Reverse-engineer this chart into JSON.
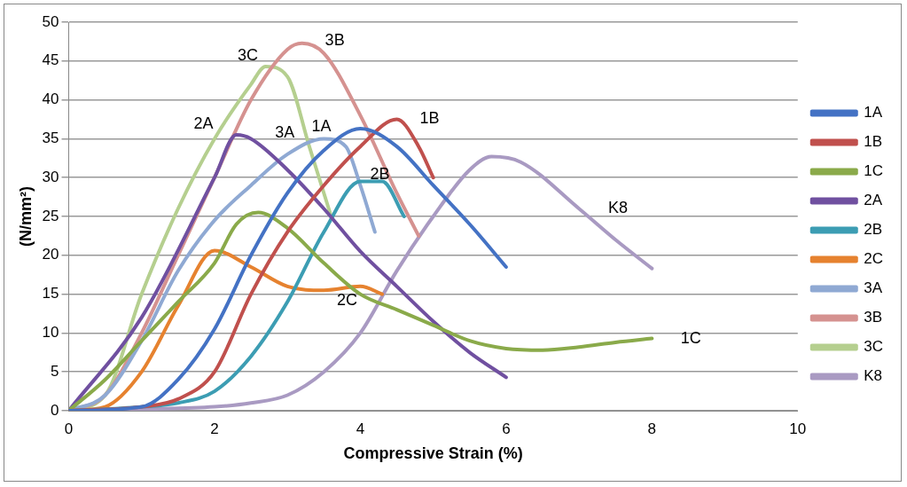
{
  "chart_data": {
    "type": "line",
    "xlabel": "Compressive Strain (%)",
    "ylabel": "(N/mm²)",
    "xlim": [
      0,
      10
    ],
    "xticks": [
      0,
      2,
      4,
      6,
      8,
      10
    ],
    "ylim": [
      0,
      50
    ],
    "yticks": [
      0,
      5,
      10,
      15,
      20,
      25,
      30,
      35,
      40,
      45,
      50
    ],
    "grid": "y",
    "legend": "right",
    "marker": "none",
    "line_style": "solid",
    "series": [
      {
        "name": "1A",
        "color": "#4472c4",
        "x": [
          0,
          1,
          1.5,
          2,
          2.5,
          3,
          3.5,
          4,
          4.5,
          5,
          5.5,
          6
        ],
        "values": [
          0,
          0.5,
          4,
          10.5,
          20,
          28,
          33.5,
          36.3,
          34,
          29,
          24,
          18.5
        ]
      },
      {
        "name": "1B",
        "color": "#c0504d",
        "x": [
          0,
          1,
          1.5,
          2,
          2.5,
          3,
          3.5,
          4,
          4.5,
          4.8,
          5
        ],
        "values": [
          0,
          0.5,
          1.5,
          5,
          15,
          23,
          29,
          34,
          37.5,
          34,
          30
        ]
      },
      {
        "name": "1C",
        "color": "#8aaa4a",
        "x": [
          0,
          0.5,
          1,
          1.5,
          2,
          2.3,
          2.6,
          3,
          3.5,
          4,
          4.5,
          5,
          5.5,
          6,
          6.5,
          7,
          7.5,
          8
        ],
        "values": [
          0,
          4,
          9,
          14,
          19,
          24,
          25.5,
          23.5,
          19,
          15,
          13,
          11,
          9,
          8,
          7.8,
          8.2,
          8.8,
          9.3
        ]
      },
      {
        "name": "2A",
        "color": "#7050a0",
        "x": [
          0,
          1,
          2,
          2.3,
          2.5,
          3,
          3.5,
          4,
          4.5,
          5,
          5.5,
          6
        ],
        "values": [
          0,
          12,
          30,
          35.5,
          35,
          31,
          26,
          20.5,
          16,
          11.5,
          7.5,
          4.3
        ]
      },
      {
        "name": "2B",
        "color": "#3c9db3",
        "x": [
          0,
          1,
          1.5,
          2,
          2.5,
          3,
          3.5,
          4,
          4.3,
          4.6
        ],
        "values": [
          0,
          0.5,
          1,
          2.5,
          7,
          14,
          23,
          29.5,
          29.5,
          25
        ]
      },
      {
        "name": "2C",
        "color": "#e6822f",
        "x": [
          0,
          0.5,
          1,
          1.5,
          2,
          2.5,
          3,
          3.5,
          4,
          4.3
        ],
        "values": [
          0,
          0.5,
          5,
          13.5,
          20.6,
          18.5,
          16,
          15.5,
          16,
          15
        ]
      },
      {
        "name": "3A",
        "color": "#8fa9d3",
        "x": [
          0,
          0.5,
          1,
          1.5,
          2,
          2.5,
          3,
          3.5,
          3.8,
          4,
          4.2
        ],
        "values": [
          0,
          2,
          9,
          18,
          24.5,
          29,
          33,
          35,
          34,
          29,
          23
        ]
      },
      {
        "name": "3B",
        "color": "#d59290",
        "x": [
          0,
          0.5,
          1,
          1.5,
          2,
          2.5,
          3,
          3.2,
          3.5,
          4,
          4.5,
          4.8
        ],
        "values": [
          0,
          2,
          10,
          20,
          30,
          40,
          46.5,
          47.3,
          46,
          38,
          28,
          22.5
        ]
      },
      {
        "name": "3C",
        "color": "#b5cf8f",
        "x": [
          0,
          0.5,
          1,
          1.5,
          2,
          2.5,
          2.7,
          3,
          3.3,
          3.6
        ],
        "values": [
          0,
          2,
          15,
          26,
          35,
          42,
          44.3,
          43,
          34,
          25
        ]
      },
      {
        "name": "K8",
        "color": "#a99ac2",
        "x": [
          0,
          1,
          2,
          2.5,
          3,
          3.5,
          4,
          4.5,
          5,
          5.5,
          5.8,
          6.2,
          7,
          7.5,
          8
        ],
        "values": [
          0,
          0.2,
          0.5,
          1,
          2,
          5,
          10,
          18,
          25,
          31,
          32.7,
          32,
          26,
          22,
          18.3
        ]
      }
    ],
    "annotations": [
      {
        "text": "3C",
        "x": 2.7,
        "y": 44.3
      },
      {
        "text": "3B",
        "x": 3.2,
        "y": 47.3
      },
      {
        "text": "2A",
        "x": 2.3,
        "y": 35.5
      },
      {
        "text": "3A",
        "x": 3.5,
        "y": 35
      },
      {
        "text": "1A",
        "x": 4,
        "y": 36.3
      },
      {
        "text": "1B",
        "x": 4.5,
        "y": 37.5
      },
      {
        "text": "2B",
        "x": 4,
        "y": 29.5
      },
      {
        "text": "2C",
        "x": 4,
        "y": 16
      },
      {
        "text": "K8",
        "x": 7,
        "y": 26
      },
      {
        "text": "1C",
        "x": 8,
        "y": 9.3
      }
    ]
  }
}
